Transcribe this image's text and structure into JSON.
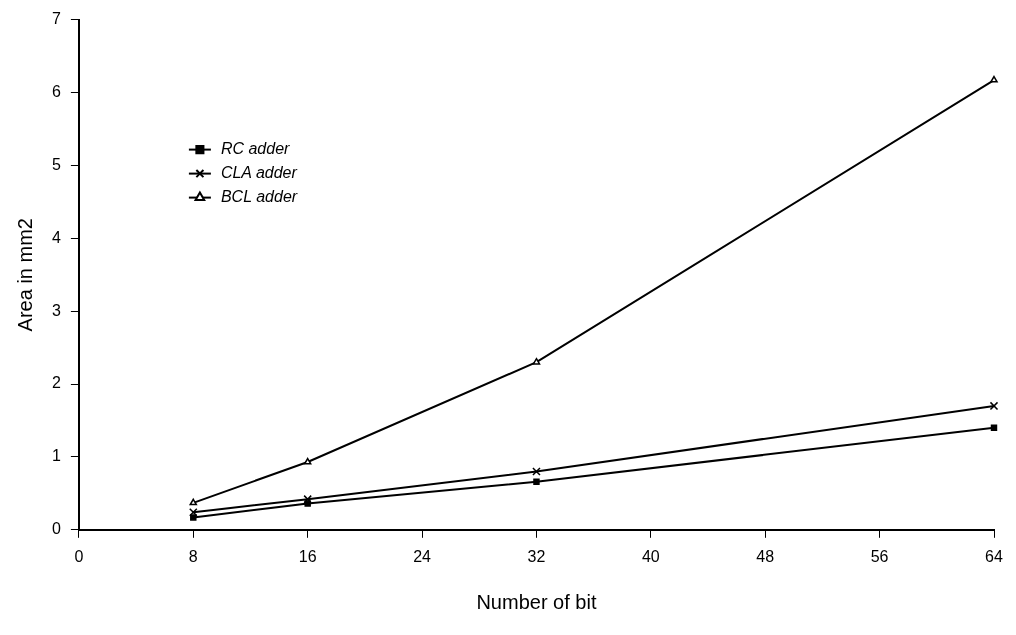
{
  "chart_data": {
    "type": "line",
    "xlabel": "Number of bit",
    "ylabel": "Area in mm2",
    "x": [
      8,
      16,
      32,
      64
    ],
    "series": [
      {
        "name": "RC adder",
        "color": "#000000",
        "marker": "square",
        "values": [
          0.17,
          0.36,
          0.66,
          1.4
        ]
      },
      {
        "name": "CLA adder",
        "color": "#000000",
        "marker": "cross",
        "values": [
          0.24,
          0.42,
          0.8,
          1.7
        ]
      },
      {
        "name": "BCL adder",
        "color": "#000000",
        "marker": "triangle",
        "values": [
          0.37,
          0.93,
          2.3,
          6.17
        ]
      }
    ],
    "xlim": [
      0,
      64
    ],
    "xticks": [
      0,
      8,
      16,
      24,
      32,
      40,
      48,
      56,
      64
    ],
    "ylim": [
      0,
      7
    ],
    "yticks": [
      0,
      1,
      2,
      3,
      4,
      5,
      6,
      7
    ],
    "grid": false,
    "legend": "top left",
    "line_style": "solid"
  }
}
